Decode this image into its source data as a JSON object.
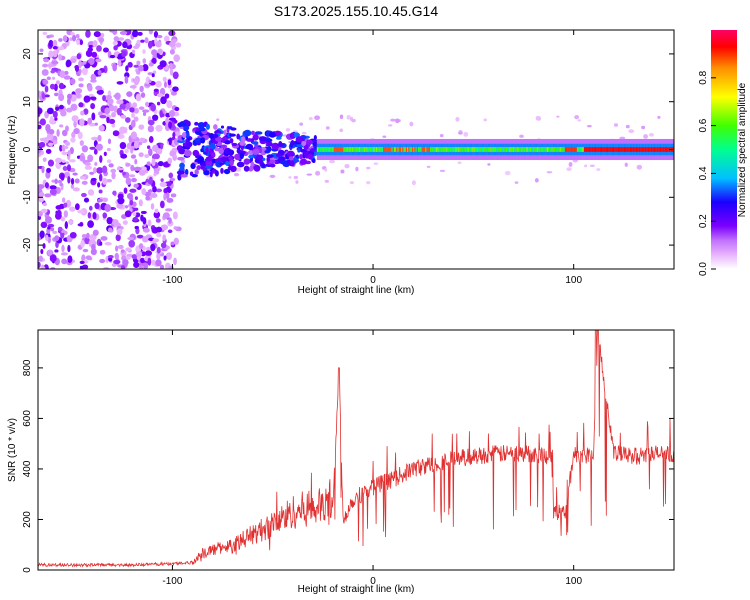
{
  "title": "S173.2025.155.10.45.G14",
  "chart_data": [
    {
      "type": "heatmap",
      "xlabel": "Height of straight line (km)",
      "ylabel": "Frequency (Hz)",
      "xlim": [
        -167,
        150
      ],
      "ylim": [
        -25,
        25
      ],
      "xticks": [
        -100,
        0,
        100
      ],
      "yticks": [
        -20,
        -10,
        0,
        10,
        20
      ],
      "colorbar": {
        "label": "Normalized spectral amplitude",
        "range": [
          0,
          1
        ],
        "ticks": [
          "0.0",
          "0.2",
          "0.4",
          "0.6",
          "0.8"
        ],
        "colors": [
          "#ffffff",
          "#e9b3ff",
          "#c070ff",
          "#7b00ff",
          "#1a00ff",
          "#00c0ff",
          "#00ff90",
          "#40ff00",
          "#ffff00",
          "#ff9000",
          "#ff0000",
          "#ff0066"
        ]
      },
      "regions": [
        {
          "x": [
            -167,
            -97
          ],
          "freq_spread_hz": 25,
          "amplitude": "scattered 0.05-0.2"
        },
        {
          "x": [
            -97,
            -28
          ],
          "freq_spread_hz": 5,
          "amplitude": "0.1-0.35"
        },
        {
          "x": [
            -28,
            150
          ],
          "freq_center_hz": 0,
          "amplitude": "0.2-1.0"
        }
      ]
    },
    {
      "type": "line",
      "xlabel": "Height of straight line (km)",
      "ylabel": "SNR (10 * v/v)",
      "xlim": [
        -167,
        150
      ],
      "ylim": [
        0,
        950
      ],
      "xticks": [
        -100,
        0,
        100
      ],
      "yticks": [
        0,
        200,
        400,
        600,
        800
      ],
      "series": [
        {
          "color": "#e03030",
          "x": [
            -167,
            -120,
            -100,
            -90,
            -85,
            -80,
            -70,
            -60,
            -50,
            -40,
            -30,
            -20,
            -17,
            -15,
            -10,
            0,
            10,
            20,
            30,
            40,
            50,
            60,
            70,
            80,
            89,
            90,
            96,
            100,
            105,
            110,
            112,
            120,
            130,
            140,
            150
          ],
          "y": [
            20,
            20,
            25,
            30,
            70,
            80,
            100,
            140,
            180,
            230,
            250,
            250,
            800,
            200,
            280,
            330,
            360,
            400,
            420,
            440,
            450,
            460,
            460,
            460,
            450,
            230,
            230,
            460,
            450,
            470,
            950,
            460,
            450,
            460,
            460
          ]
        }
      ]
    }
  ]
}
